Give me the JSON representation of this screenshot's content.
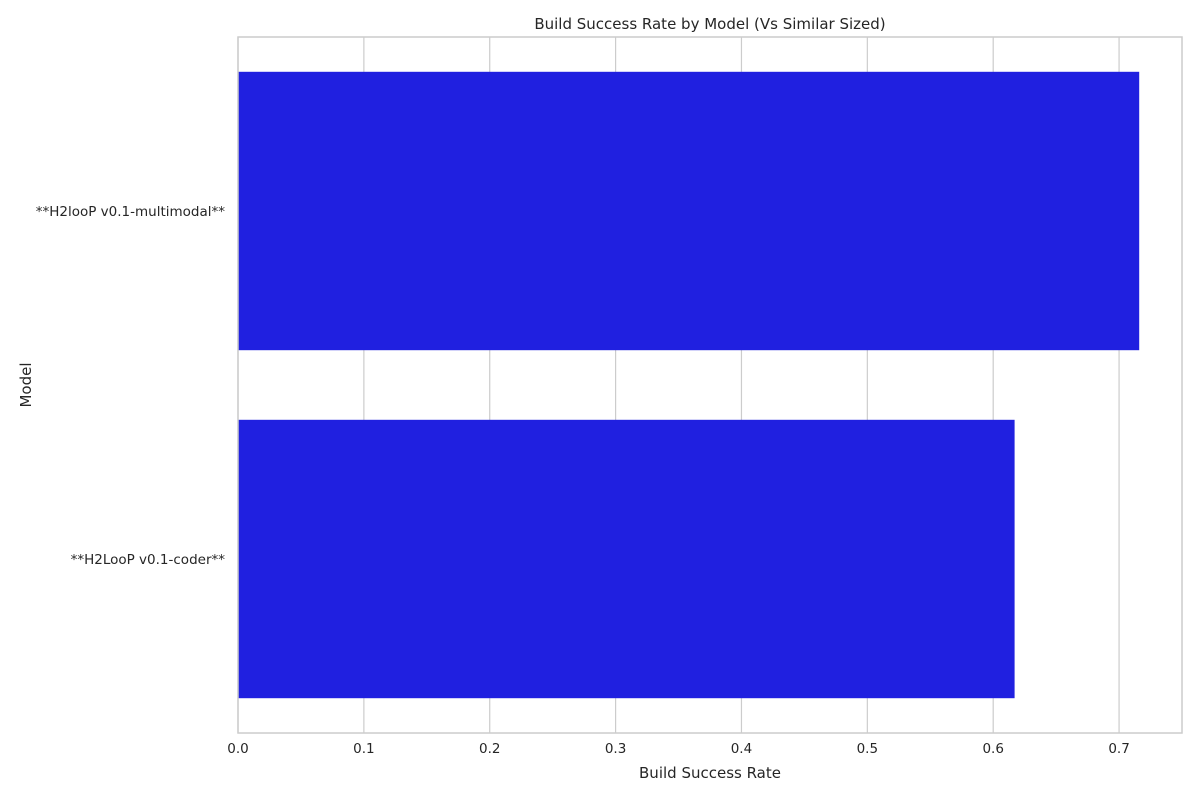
{
  "chart_data": {
    "type": "bar",
    "orientation": "horizontal",
    "title": "Build Success Rate by Model (Vs Similar Sized)",
    "xlabel": "Build Success Rate",
    "ylabel": "Model",
    "categories": [
      "**H2looP v0.1-multimodal**",
      "**H2LooP v0.1-coder**"
    ],
    "values": [
      0.716,
      0.617
    ],
    "xlim": [
      0,
      0.75
    ],
    "xticks": [
      0.0,
      0.1,
      0.2,
      0.3,
      0.4,
      0.5,
      0.6,
      0.7
    ],
    "xtick_labels": [
      "0.0",
      "0.1",
      "0.2",
      "0.3",
      "0.4",
      "0.5",
      "0.6",
      "0.7"
    ],
    "grid": true,
    "bar_color": "#2020e0"
  }
}
